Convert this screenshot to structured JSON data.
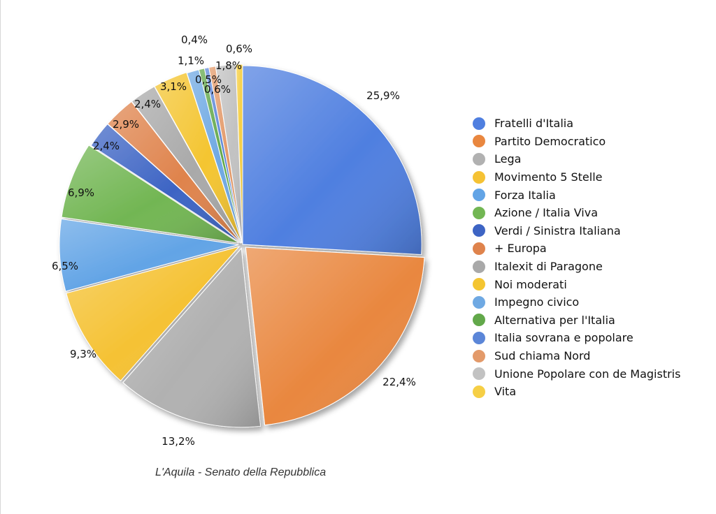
{
  "caption": "L'Aquila - Senato della Repubblica",
  "chart_data": {
    "type": "pie",
    "title": "L'Aquila - Senato della Repubblica",
    "legend_position": "right",
    "value_labels": [
      "25,9%",
      "22,4%",
      "13,2%",
      "9,3%",
      "6,5%",
      "6,9%",
      "2,4%",
      "2,9%",
      "2,4%",
      "3,1%",
      "1,1%",
      "0,5%",
      "0,4%",
      "0,6%",
      "1,8%",
      "0,6%"
    ],
    "slices": [
      {
        "label": "Fratelli d'Italia",
        "value": 25.9,
        "color": "#4f7fe0"
      },
      {
        "label": "Partito Democratico",
        "value": 22.4,
        "color": "#e9873f"
      },
      {
        "label": "Lega",
        "value": 13.2,
        "color": "#b1b1b1"
      },
      {
        "label": "Movimento 5 Stelle",
        "value": 9.3,
        "color": "#f5c234"
      },
      {
        "label": "Forza Italia",
        "value": 6.5,
        "color": "#62a4e6"
      },
      {
        "label": "Azione / Italia Viva",
        "value": 6.9,
        "color": "#72b653"
      },
      {
        "label": "Verdi / Sinistra Italiana",
        "value": 2.4,
        "color": "#3d64c4"
      },
      {
        "label": "+ Europa",
        "value": 2.9,
        "color": "#df834c"
      },
      {
        "label": "Italexit di Paragone",
        "value": 2.4,
        "color": "#a9a9a9"
      },
      {
        "label": "Noi moderati",
        "value": 3.1,
        "color": "#f4c531"
      },
      {
        "label": "Impegno civico",
        "value": 1.1,
        "color": "#6fa9e3"
      },
      {
        "label": "Alternativa per l'Italia",
        "value": 0.5,
        "color": "#62a84a"
      },
      {
        "label": "Italia sovrana e popolare",
        "value": 0.4,
        "color": "#5b86d8"
      },
      {
        "label": "Sud chiama Nord",
        "value": 0.6,
        "color": "#e39a6a"
      },
      {
        "label": "Unione Popolare con de Magistris",
        "value": 1.8,
        "color": "#c2c2c2"
      },
      {
        "label": "Vita",
        "value": 0.6,
        "color": "#f6cf45"
      }
    ]
  }
}
